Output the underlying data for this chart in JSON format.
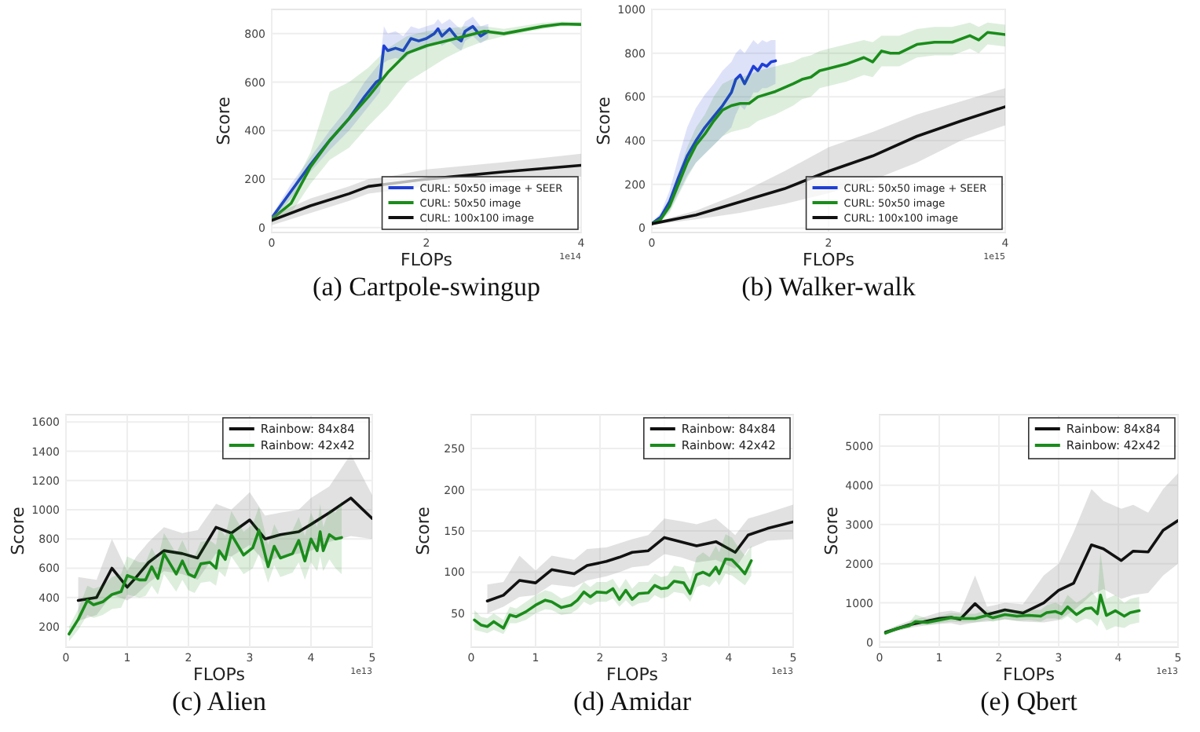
{
  "chart_data": [
    {
      "type": "line",
      "title": "(a) Cartpole-swingup",
      "xlabel": "FLOPs",
      "ylabel": "Score",
      "annotations": [
        "1e14"
      ],
      "xlim": [
        0,
        4
      ],
      "xticks": [
        0,
        2,
        4
      ],
      "ylim": [
        -20,
        900
      ],
      "yticks": [
        0,
        200,
        400,
        600,
        800
      ],
      "grid": true,
      "legend": "bottom right",
      "series": [
        {
          "name": "CURL: 50x50 image + SEER",
          "color": "#1f3fd6",
          "x": [
            0,
            0.25,
            0.5,
            0.75,
            1.0,
            1.2,
            1.35,
            1.4,
            1.45,
            1.5,
            1.6,
            1.7,
            1.8,
            1.9,
            2.0,
            2.1,
            2.15,
            2.2,
            2.3,
            2.4,
            2.45,
            2.5,
            2.6,
            2.7,
            2.8
          ],
          "values": [
            40,
            150,
            260,
            360,
            450,
            540,
            600,
            610,
            750,
            730,
            740,
            730,
            780,
            770,
            780,
            800,
            820,
            790,
            820,
            780,
            770,
            810,
            830,
            790,
            810
          ],
          "lower": [
            30,
            120,
            230,
            320,
            400,
            480,
            540,
            560,
            680,
            690,
            700,
            690,
            720,
            730,
            740,
            760,
            770,
            750,
            770,
            740,
            730,
            770,
            790,
            760,
            780
          ],
          "upper": [
            50,
            180,
            290,
            400,
            500,
            600,
            660,
            680,
            830,
            800,
            810,
            790,
            830,
            820,
            830,
            840,
            860,
            840,
            860,
            830,
            820,
            850,
            870,
            830,
            840
          ]
        },
        {
          "name": "CURL: 50x50 image",
          "color": "#1a8c1a",
          "x": [
            0,
            0.25,
            0.5,
            0.75,
            1.0,
            1.25,
            1.5,
            1.75,
            2.0,
            2.25,
            2.5,
            2.75,
            3.0,
            3.5,
            3.75,
            4.0
          ],
          "values": [
            35,
            100,
            250,
            360,
            450,
            540,
            640,
            720,
            750,
            770,
            790,
            810,
            800,
            830,
            840,
            838
          ],
          "lower": [
            20,
            60,
            180,
            280,
            330,
            420,
            500,
            600,
            650,
            700,
            740,
            770,
            790,
            820,
            830,
            830
          ],
          "upper": [
            50,
            150,
            310,
            560,
            600,
            660,
            740,
            790,
            810,
            820,
            830,
            830,
            820,
            845,
            850,
            848
          ]
        },
        {
          "name": "CURL: 100x100 image",
          "color": "#111111",
          "x": [
            0,
            0.5,
            1.0,
            1.25,
            1.5,
            2,
            3,
            4
          ],
          "values": [
            30,
            90,
            140,
            170,
            180,
            200,
            230,
            257
          ],
          "lower": [
            10,
            60,
            110,
            140,
            150,
            170,
            190,
            210
          ],
          "upper": [
            50,
            120,
            170,
            200,
            210,
            240,
            270,
            305
          ]
        }
      ]
    },
    {
      "type": "line",
      "title": "(b) Walker-walk",
      "xlabel": "FLOPs",
      "ylabel": "Score",
      "annotations": [
        "1e15"
      ],
      "xlim": [
        0,
        4
      ],
      "xticks": [
        0,
        2,
        4
      ],
      "ylim": [
        -20,
        1000
      ],
      "yticks": [
        0,
        200,
        400,
        600,
        800,
        1000
      ],
      "grid": true,
      "legend": "bottom right",
      "series": [
        {
          "name": "CURL: 50x50 image + SEER",
          "color": "#1f3fd6",
          "x": [
            0,
            0.1,
            0.2,
            0.3,
            0.4,
            0.5,
            0.6,
            0.7,
            0.8,
            0.9,
            0.95,
            1.0,
            1.05,
            1.1,
            1.15,
            1.2,
            1.25,
            1.3,
            1.35,
            1.4
          ],
          "values": [
            20,
            50,
            120,
            230,
            330,
            400,
            460,
            510,
            560,
            620,
            680,
            700,
            660,
            700,
            740,
            720,
            750,
            740,
            760,
            765
          ],
          "lower": [
            15,
            35,
            80,
            160,
            240,
            300,
            340,
            380,
            420,
            460,
            520,
            560,
            540,
            580,
            620,
            620,
            640,
            640,
            650,
            660
          ],
          "upper": [
            25,
            70,
            170,
            320,
            460,
            550,
            610,
            660,
            720,
            760,
            800,
            820,
            800,
            830,
            860,
            840,
            860,
            850,
            860,
            860
          ]
        },
        {
          "name": "CURL: 50x50 image",
          "color": "#1a8c1a",
          "x": [
            0,
            0.1,
            0.2,
            0.3,
            0.4,
            0.5,
            0.6,
            0.7,
            0.8,
            0.9,
            1.0,
            1.1,
            1.2,
            1.4,
            1.6,
            1.7,
            1.8,
            1.9,
            2.0,
            2.2,
            2.4,
            2.5,
            2.6,
            2.7,
            2.8,
            3.0,
            3.2,
            3.4,
            3.6,
            3.7,
            3.8,
            4.0
          ],
          "values": [
            20,
            40,
            100,
            200,
            300,
            380,
            430,
            490,
            540,
            560,
            570,
            570,
            600,
            625,
            660,
            680,
            690,
            720,
            730,
            750,
            780,
            760,
            810,
            800,
            800,
            840,
            850,
            850,
            880,
            860,
            895,
            885
          ],
          "lower": [
            15,
            30,
            70,
            150,
            230,
            300,
            340,
            380,
            420,
            440,
            450,
            460,
            490,
            520,
            560,
            590,
            600,
            640,
            650,
            670,
            700,
            690,
            740,
            740,
            740,
            780,
            790,
            790,
            820,
            800,
            840,
            830
          ],
          "upper": [
            25,
            50,
            130,
            250,
            370,
            460,
            520,
            600,
            660,
            680,
            690,
            700,
            720,
            740,
            760,
            780,
            790,
            810,
            820,
            840,
            860,
            850,
            880,
            880,
            880,
            910,
            920,
            920,
            940,
            920,
            940,
            930
          ]
        },
        {
          "name": "CURL: 100x100 image",
          "color": "#111111",
          "x": [
            0,
            0.5,
            1.0,
            1.5,
            2.0,
            2.5,
            3.0,
            3.5,
            4.0
          ],
          "values": [
            20,
            60,
            120,
            180,
            260,
            330,
            420,
            490,
            555
          ],
          "lower": [
            15,
            40,
            70,
            110,
            160,
            220,
            300,
            400,
            470
          ],
          "upper": [
            25,
            80,
            160,
            260,
            370,
            440,
            520,
            580,
            640
          ]
        }
      ]
    },
    {
      "type": "line",
      "title": "(c) Alien",
      "xlabel": "FLOPs",
      "ylabel": "Score",
      "annotations": [
        "1e13"
      ],
      "xlim": [
        0,
        5
      ],
      "xticks": [
        0,
        1,
        2,
        3,
        4,
        5
      ],
      "ylim": [
        60,
        1650
      ],
      "yticks": [
        200,
        400,
        600,
        800,
        1000,
        1200,
        1400,
        1600
      ],
      "grid": true,
      "legend": "top right",
      "series": [
        {
          "name": "Rainbow: 84x84",
          "color": "#111111",
          "x": [
            0.2,
            0.5,
            0.75,
            1.0,
            1.15,
            1.35,
            1.6,
            1.9,
            2.15,
            2.45,
            2.7,
            3.0,
            3.25,
            3.5,
            3.8,
            4.0,
            4.3,
            4.65,
            5.0
          ],
          "values": [
            380,
            400,
            600,
            470,
            540,
            640,
            720,
            700,
            670,
            880,
            840,
            930,
            800,
            830,
            850,
            900,
            980,
            1080,
            940
          ],
          "lower": [
            240,
            280,
            420,
            380,
            420,
            500,
            580,
            560,
            520,
            700,
            680,
            760,
            640,
            680,
            700,
            720,
            780,
            820,
            800
          ],
          "upper": [
            540,
            520,
            800,
            580,
            680,
            780,
            880,
            840,
            860,
            1040,
            1000,
            1120,
            960,
            980,
            1000,
            1080,
            1160,
            1380,
            1100
          ]
        },
        {
          "name": "Rainbow: 42x42",
          "color": "#1a8c1a",
          "x": [
            0.05,
            0.2,
            0.35,
            0.45,
            0.6,
            0.75,
            0.9,
            1.0,
            1.2,
            1.3,
            1.4,
            1.5,
            1.6,
            1.8,
            1.9,
            2.0,
            2.1,
            2.2,
            2.35,
            2.45,
            2.5,
            2.6,
            2.7,
            2.9,
            3.05,
            3.15,
            3.3,
            3.4,
            3.5,
            3.7,
            3.8,
            3.9,
            4.0,
            4.1,
            4.15,
            4.2,
            4.3,
            4.4,
            4.5
          ],
          "values": [
            150,
            250,
            380,
            350,
            370,
            420,
            440,
            550,
            520,
            520,
            610,
            530,
            700,
            560,
            650,
            560,
            540,
            630,
            640,
            600,
            720,
            660,
            830,
            690,
            740,
            860,
            610,
            750,
            670,
            700,
            790,
            650,
            800,
            720,
            850,
            720,
            830,
            800,
            810
          ],
          "lower": [
            100,
            180,
            280,
            260,
            280,
            320,
            330,
            420,
            400,
            410,
            480,
            420,
            560,
            440,
            520,
            450,
            430,
            500,
            510,
            480,
            580,
            540,
            680,
            560,
            600,
            700,
            500,
            620,
            540,
            570,
            640,
            520,
            640,
            580,
            680,
            580,
            660,
            600,
            560
          ],
          "upper": [
            200,
            320,
            480,
            460,
            480,
            540,
            560,
            680,
            640,
            640,
            740,
            660,
            840,
            700,
            790,
            700,
            680,
            780,
            790,
            760,
            880,
            820,
            990,
            850,
            900,
            1020,
            760,
            900,
            820,
            860,
            950,
            820,
            980,
            880,
            1040,
            880,
            1000,
            980,
            1060
          ]
        }
      ]
    },
    {
      "type": "line",
      "title": "(d) Amidar",
      "xlabel": "FLOPs",
      "ylabel": "Score",
      "annotations": [
        "1e13"
      ],
      "xlim": [
        0,
        5
      ],
      "xticks": [
        0,
        1,
        2,
        3,
        4,
        5
      ],
      "ylim": [
        9,
        291
      ],
      "yticks": [
        50,
        100,
        150,
        200,
        250
      ],
      "grid": true,
      "legend": "top right",
      "series": [
        {
          "name": "Rainbow: 84x84",
          "color": "#111111",
          "x": [
            0.25,
            0.5,
            0.75,
            1.0,
            1.25,
            1.6,
            1.8,
            2.1,
            2.3,
            2.5,
            2.75,
            3.0,
            3.25,
            3.5,
            3.8,
            4.1,
            4.3,
            4.6,
            5.0
          ],
          "values": [
            65,
            72,
            90,
            87,
            103,
            98,
            108,
            113,
            118,
            124,
            126,
            142,
            137,
            132,
            137,
            124,
            145,
            153,
            161
          ],
          "lower": [
            50,
            58,
            70,
            72,
            85,
            82,
            90,
            95,
            100,
            106,
            108,
            122,
            118,
            112,
            115,
            104,
            128,
            138,
            140
          ],
          "upper": [
            85,
            88,
            120,
            102,
            120,
            115,
            128,
            130,
            135,
            140,
            145,
            165,
            162,
            158,
            165,
            145,
            165,
            172,
            182
          ]
        },
        {
          "name": "Rainbow: 42x42",
          "color": "#1a8c1a",
          "x": [
            0.05,
            0.15,
            0.25,
            0.35,
            0.5,
            0.6,
            0.7,
            0.85,
            1.0,
            1.15,
            1.25,
            1.4,
            1.55,
            1.65,
            1.75,
            1.85,
            1.95,
            2.1,
            2.2,
            2.3,
            2.4,
            2.5,
            2.6,
            2.75,
            2.85,
            2.95,
            3.05,
            3.15,
            3.3,
            3.4,
            3.5,
            3.6,
            3.7,
            3.8,
            3.85,
            3.95,
            4.05,
            4.15,
            4.25,
            4.35
          ],
          "values": [
            42,
            36,
            34,
            40,
            32,
            48,
            46,
            52,
            60,
            66,
            64,
            57,
            60,
            66,
            76,
            70,
            76,
            75,
            80,
            67,
            78,
            67,
            74,
            75,
            84,
            80,
            81,
            89,
            87,
            74,
            97,
            100,
            96,
            106,
            98,
            116,
            115,
            107,
            98,
            114
          ],
          "lower": [
            30,
            28,
            26,
            30,
            25,
            38,
            38,
            42,
            50,
            55,
            54,
            48,
            50,
            55,
            64,
            60,
            64,
            64,
            68,
            58,
            66,
            58,
            62,
            64,
            72,
            68,
            70,
            76,
            74,
            64,
            82,
            85,
            82,
            90,
            84,
            98,
            96,
            90,
            84,
            96
          ],
          "upper": [
            54,
            46,
            44,
            50,
            42,
            58,
            56,
            64,
            72,
            78,
            76,
            68,
            72,
            78,
            88,
            82,
            88,
            88,
            92,
            80,
            92,
            80,
            88,
            88,
            98,
            94,
            96,
            108,
            106,
            90,
            118,
            124,
            118,
            132,
            124,
            146,
            142,
            130,
            120,
            132
          ]
        }
      ]
    },
    {
      "type": "line",
      "title": "(e) Qbert",
      "xlabel": "FLOPs",
      "ylabel": "Score",
      "annotations": [
        "1e13"
      ],
      "xlim": [
        0,
        5
      ],
      "xticks": [
        0,
        1,
        2,
        3,
        4,
        5
      ],
      "ylim": [
        -130,
        5800
      ],
      "yticks": [
        0,
        1000,
        2000,
        3000,
        4000,
        5000
      ],
      "grid": true,
      "legend": "top right",
      "series": [
        {
          "name": "Rainbow: 84x84",
          "color": "#111111",
          "x": [
            0.1,
            0.25,
            0.5,
            0.75,
            1.0,
            1.2,
            1.35,
            1.6,
            1.8,
            2.1,
            2.4,
            2.75,
            3.0,
            3.25,
            3.55,
            3.75,
            4.05,
            4.25,
            4.5,
            4.75,
            5.0
          ],
          "values": [
            250,
            320,
            440,
            520,
            600,
            630,
            580,
            980,
            700,
            820,
            740,
            1000,
            1320,
            1500,
            2480,
            2380,
            2080,
            2320,
            2300,
            2850,
            3100
          ],
          "lower": [
            200,
            260,
            360,
            420,
            460,
            480,
            430,
            500,
            520,
            580,
            520,
            500,
            560,
            800,
            1200,
            1350,
            1100,
            1200,
            1250,
            1700,
            2000
          ],
          "upper": [
            300,
            400,
            540,
            640,
            760,
            800,
            760,
            1700,
            900,
            1000,
            960,
            1700,
            2000,
            2800,
            3900,
            3600,
            3400,
            3500,
            3300,
            3900,
            4300
          ]
        },
        {
          "name": "Rainbow: 42x42",
          "color": "#1a8c1a",
          "x": [
            0.1,
            0.3,
            0.5,
            0.6,
            0.8,
            1.0,
            1.2,
            1.4,
            1.6,
            1.8,
            1.9,
            2.1,
            2.3,
            2.5,
            2.7,
            2.8,
            2.95,
            3.05,
            3.15,
            3.3,
            3.45,
            3.55,
            3.65,
            3.7,
            3.8,
            3.95,
            4.1,
            4.2,
            4.35
          ],
          "values": [
            230,
            350,
            420,
            520,
            500,
            560,
            620,
            600,
            600,
            680,
            620,
            700,
            660,
            680,
            660,
            750,
            780,
            720,
            900,
            700,
            850,
            870,
            720,
            1200,
            680,
            800,
            660,
            750,
            800
          ],
          "lower": [
            200,
            300,
            360,
            440,
            430,
            480,
            520,
            500,
            500,
            560,
            520,
            580,
            540,
            560,
            520,
            600,
            600,
            560,
            660,
            480,
            600,
            560,
            400,
            600,
            300,
            400,
            360,
            450,
            500
          ],
          "upper": [
            260,
            400,
            500,
            700,
            600,
            660,
            740,
            720,
            720,
            820,
            760,
            840,
            800,
            820,
            820,
            940,
            1000,
            920,
            1200,
            1000,
            1150,
            1300,
            1100,
            2300,
            1100,
            1200,
            1000,
            1100,
            1150
          ]
        }
      ]
    }
  ]
}
